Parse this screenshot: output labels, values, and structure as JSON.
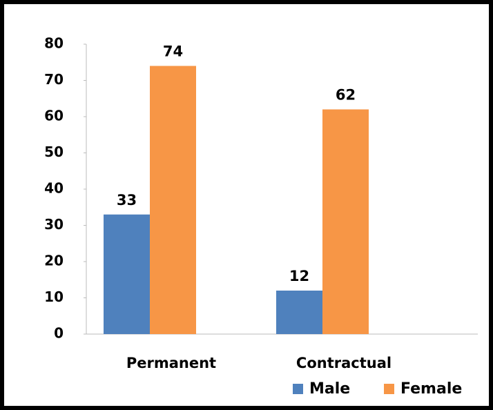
{
  "chart_data": {
    "type": "bar",
    "categories": [
      "Permanent",
      "Contractual"
    ],
    "series": [
      {
        "name": "Male",
        "color": "#4f81bd",
        "values": [
          33,
          12
        ]
      },
      {
        "name": "Female",
        "color": "#f79646",
        "values": [
          74,
          62
        ]
      }
    ],
    "ylim": [
      0,
      80
    ],
    "yticks": [
      0,
      10,
      20,
      30,
      40,
      50,
      60,
      70,
      80
    ],
    "grid": false,
    "legend": "bottom-right"
  }
}
